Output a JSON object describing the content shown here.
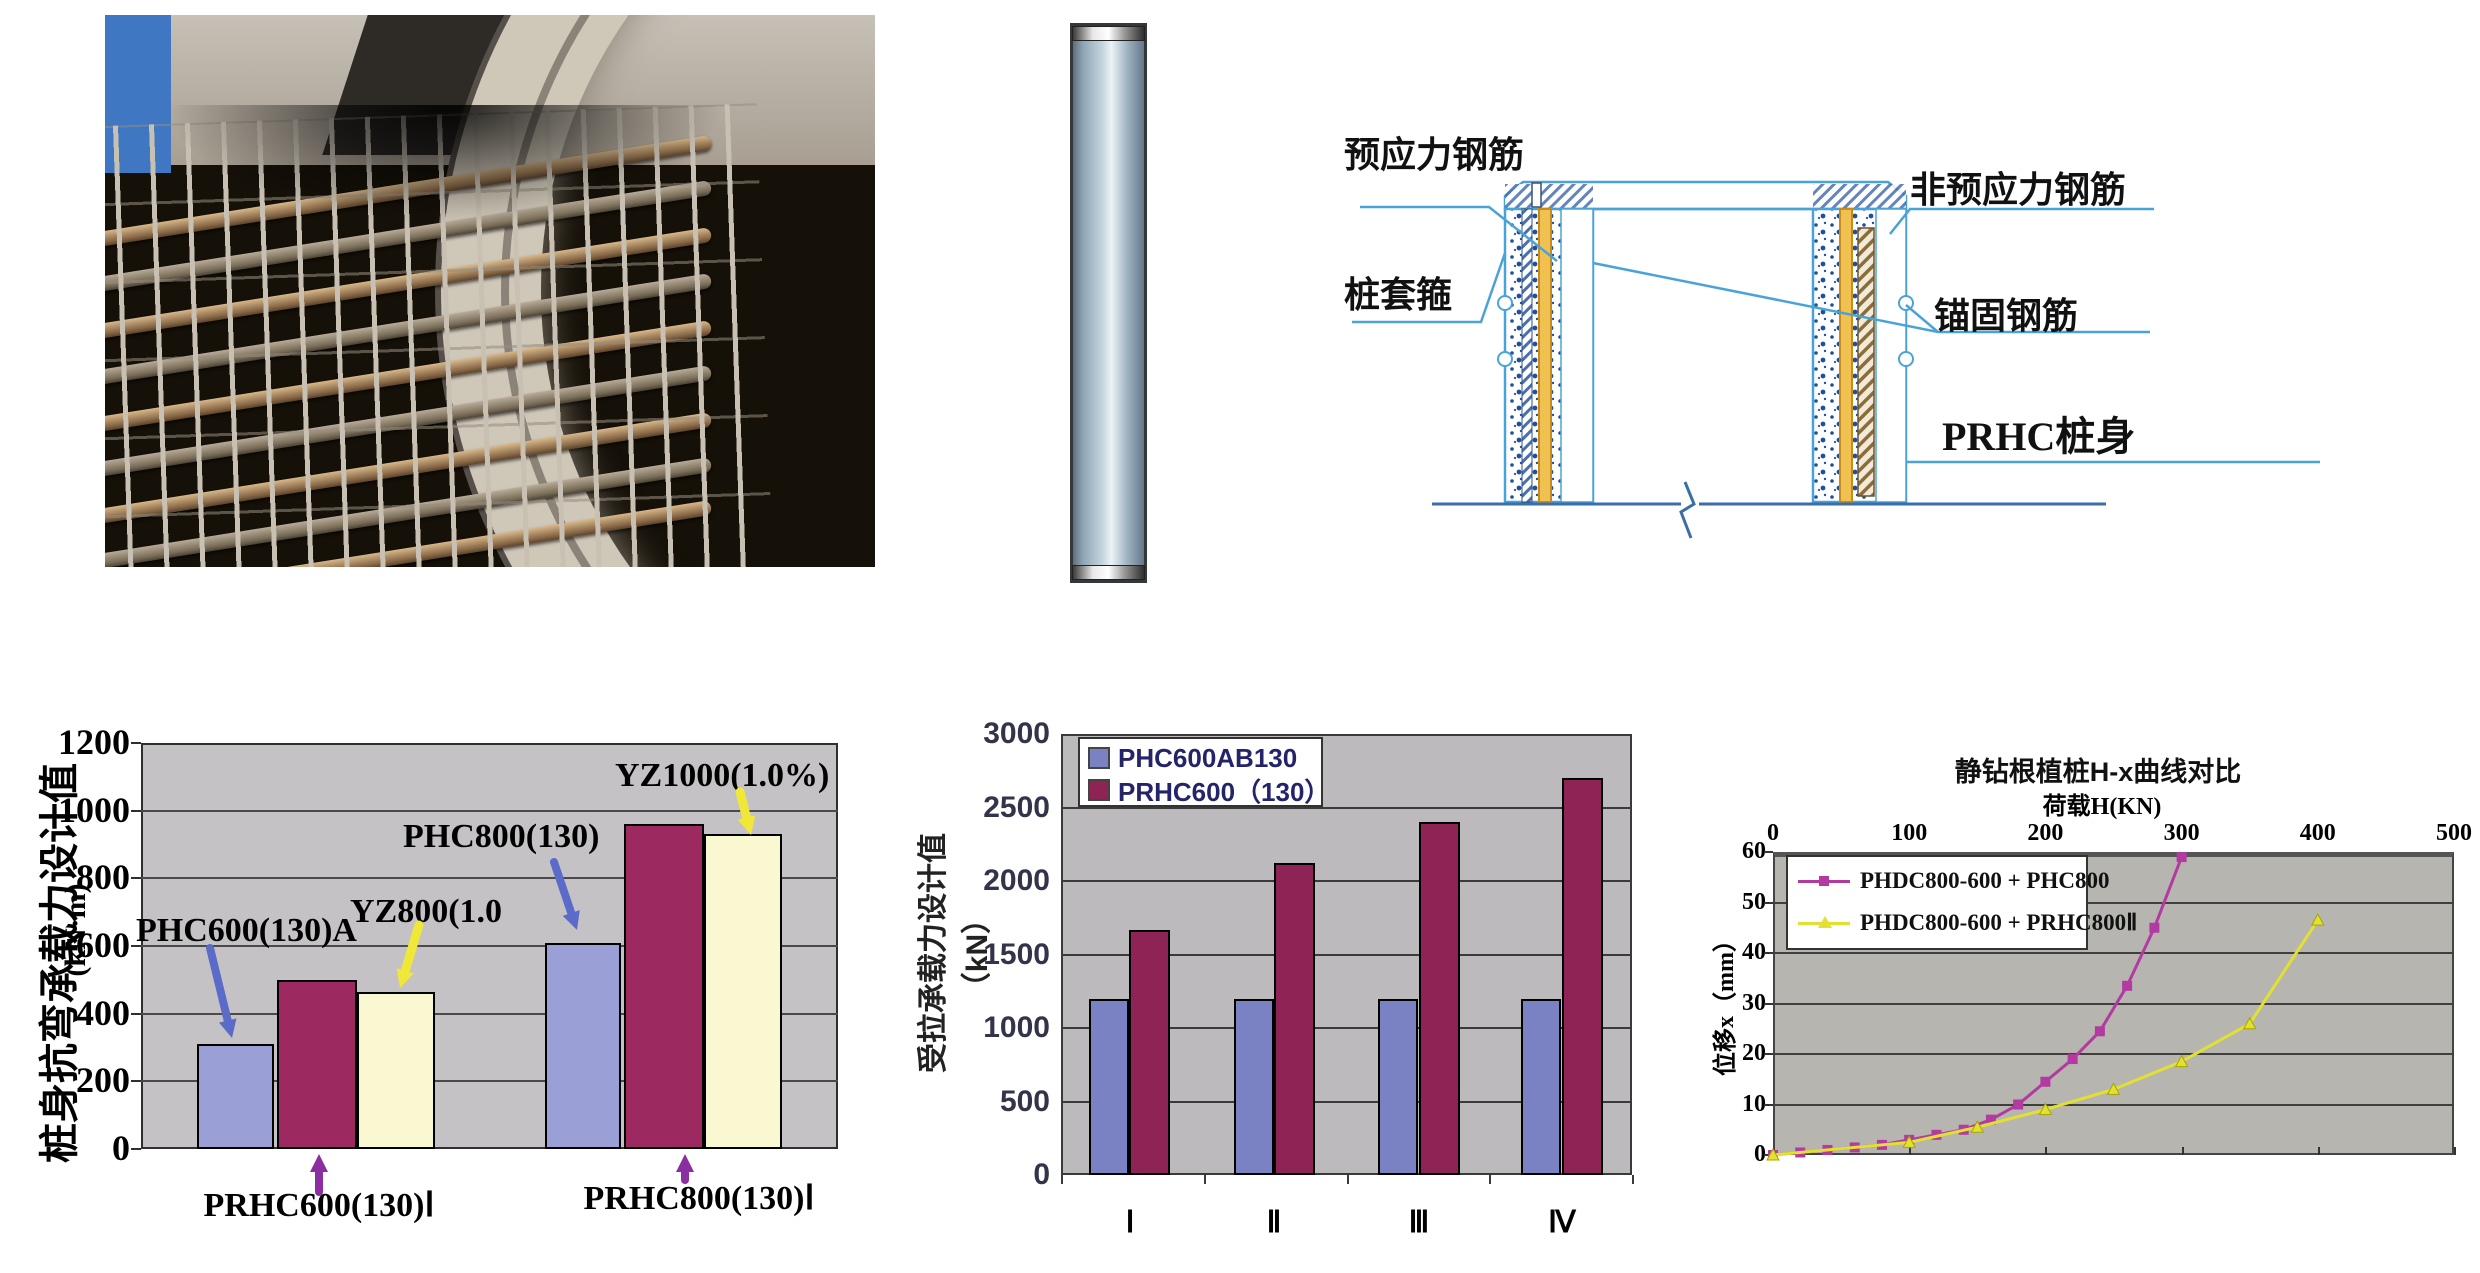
{
  "figure": {
    "diagram": {
      "labels": {
        "prestressed": "预应力钢筋",
        "non_prestressed": "非预应力钢筋",
        "pile_hoop": "桩套箍",
        "anchor": "锚固钢筋",
        "pile_body": "PRHC桩身"
      }
    }
  },
  "chart_data": [
    {
      "id": "bending-capacity",
      "type": "bar",
      "title": "",
      "ylabel": "桩身抗弯承载力设计值",
      "ylabel_unit": "(kN·m)",
      "xlabel": "",
      "ylim": [
        0,
        1200
      ],
      "yticks": [
        1200,
        1000,
        800,
        600,
        400,
        200,
        0
      ],
      "grid": true,
      "plot_bg": "#c5c2c5",
      "categories": [
        "PRHC600(130)Ⅰ",
        "PRHC800(130)Ⅰ"
      ],
      "series": [
        {
          "name": "PHC",
          "color": "#9aa0d6",
          "values": [
            310,
            610
          ]
        },
        {
          "name": "PRHC",
          "color": "#9c2a60",
          "values": [
            500,
            960
          ]
        },
        {
          "name": "YZ",
          "color": "#faf8d0",
          "values": [
            465,
            930
          ]
        }
      ],
      "annotations": [
        {
          "text": "PHC600(130)A",
          "arrow_color": "#5b6bc8"
        },
        {
          "text": "YZ800(1.0",
          "arrow_color": "#f0e838"
        },
        {
          "text": "PHC800(130)",
          "arrow_color": "#5b6bc8"
        },
        {
          "text": "YZ1000(1.0%)",
          "arrow_color": "#f0e838"
        }
      ],
      "category_arrow_color": "#8b2fa0"
    },
    {
      "id": "tension-capacity",
      "type": "bar",
      "title": "",
      "ylabel": "受拉承载力设计值（kN）",
      "xlabel": "",
      "ylim": [
        0,
        3000
      ],
      "yticks": [
        3000,
        2500,
        2000,
        1500,
        1000,
        500,
        0
      ],
      "grid": true,
      "plot_bg": "#bdbabd",
      "legend_position": "top-left",
      "categories": [
        "Ⅰ",
        "Ⅱ",
        "Ⅲ",
        "Ⅳ"
      ],
      "series": [
        {
          "name": "PHC600AB130",
          "color": "#7b82c4",
          "values": [
            1200,
            1200,
            1200,
            1200
          ]
        },
        {
          "name": "PRHC600（130）",
          "color": "#8e2456",
          "values": [
            1670,
            2120,
            2400,
            2700
          ]
        }
      ]
    },
    {
      "id": "h-x-curve",
      "type": "line",
      "title": "静钻根植桩H-x曲线对比",
      "xlabel": "荷载H(KN)",
      "ylabel": "位移x（mm）",
      "xlim": [
        0,
        500
      ],
      "ylim": [
        0,
        60
      ],
      "xticks": [
        0,
        100,
        200,
        300,
        400,
        500
      ],
      "yticks": [
        60,
        50,
        40,
        30,
        20,
        10,
        0
      ],
      "x_axis_position": "top",
      "grid": true,
      "plot_bg": "#b7b5b0",
      "legend_position": "top-left",
      "series": [
        {
          "name": "PHDC800-600 + PHC800",
          "color": "#b23aa0",
          "marker": "square",
          "points": [
            [
              0,
              0
            ],
            [
              20,
              0.5
            ],
            [
              40,
              1
            ],
            [
              60,
              1.5
            ],
            [
              80,
              2
            ],
            [
              100,
              3
            ],
            [
              120,
              4
            ],
            [
              140,
              5
            ],
            [
              160,
              7
            ],
            [
              180,
              10
            ],
            [
              200,
              14.5
            ],
            [
              220,
              19
            ],
            [
              240,
              24.5
            ],
            [
              260,
              33.5
            ],
            [
              280,
              45
            ],
            [
              300,
              59
            ]
          ]
        },
        {
          "name": "PHDC800-600 + PRHC800Ⅱ",
          "color": "#e2e030",
          "marker": "triangle",
          "points": [
            [
              0,
              0
            ],
            [
              100,
              2.5
            ],
            [
              150,
              5.5
            ],
            [
              200,
              9
            ],
            [
              250,
              13
            ],
            [
              300,
              18.5
            ],
            [
              350,
              26
            ],
            [
              400,
              46.5
            ]
          ]
        }
      ]
    }
  ]
}
